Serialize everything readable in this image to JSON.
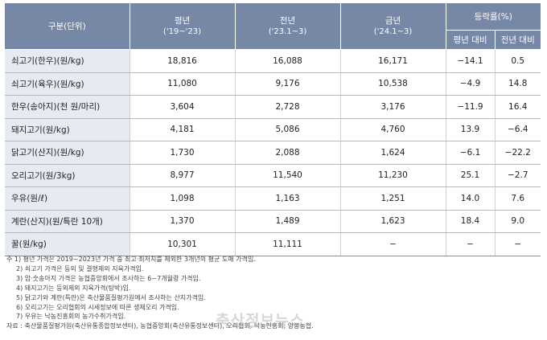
{
  "header": {
    "category": "구분(단위)",
    "avg": "평년",
    "avg_sub": "('19~'23)",
    "prev": "전년",
    "prev_sub": "('23.1~3)",
    "cur": "금년",
    "cur_sub": "('24.1~3)",
    "change": "등락률(%)",
    "vs_avg": "평년 대비",
    "vs_prev": "전년 대비"
  },
  "rows": [
    {
      "name": "쇠고기(한우)(원/kg)",
      "avg": "18,816",
      "prev": "16,088",
      "cur": "16,171",
      "vs_avg": "−14.1",
      "vs_prev": "0.5"
    },
    {
      "name": "쇠고기(육우)(원/kg)",
      "avg": "11,080",
      "prev": "9,176",
      "cur": "10,538",
      "vs_avg": "−4.9",
      "vs_prev": "14.8"
    },
    {
      "name": "한우(송아지)(천 원/마리)",
      "avg": "3,604",
      "prev": "2,728",
      "cur": "3,176",
      "vs_avg": "−11.9",
      "vs_prev": "16.4"
    },
    {
      "name": "돼지고기(원/kg)",
      "avg": "4,181",
      "prev": "5,086",
      "cur": "4,760",
      "vs_avg": "13.9",
      "vs_prev": "−6.4"
    },
    {
      "name": "닭고기(산지)(원/kg)",
      "avg": "1,730",
      "prev": "2,088",
      "cur": "1,624",
      "vs_avg": "−6.1",
      "vs_prev": "−22.2"
    },
    {
      "name": "오리고기(원/3kg)",
      "avg": "8,977",
      "prev": "11,540",
      "cur": "11,230",
      "vs_avg": "25.1",
      "vs_prev": "−2.7"
    },
    {
      "name": "우유(원/ℓ)",
      "avg": "1,098",
      "prev": "1,163",
      "cur": "1,251",
      "vs_avg": "14.0",
      "vs_prev": "7.6"
    },
    {
      "name": "계란(산지)(원/특란 10개)",
      "avg": "1,370",
      "prev": "1,489",
      "cur": "1,623",
      "vs_avg": "18.4",
      "vs_prev": "9.0"
    },
    {
      "name": "꿀(원/kg)",
      "avg": "10,301",
      "prev": "11,111",
      "cur": "−",
      "vs_avg": "−",
      "vs_prev": "−"
    }
  ],
  "notes": [
    "주 1) 평년 가격은 2019~2023년 가격 중 최고·최저치를 제외한 3개년의 평균 도매 가격임.",
    "2) 쇠고기 가격은 등외 및 결형제외 지육가격임.",
    "3) 암·숫송아지 가격은 농협중앙회에서 조사하는 6~7개월령 가격임.",
    "4) 돼지고기는 등외제외 지육가격(탕박)임.",
    "5) 닭고기와 계란(특란)은 축산물품질평가원에서 조사하는 산지가격임.",
    "6) 오리고기는 오리협회의 시세정보에 따른 생체오리 가격임.",
    "7) 우유는 낙농진흥회의 농가수취가격임.",
    "자료 : 축산물품질평가원(축산유통종합정보센터), 농협중앙회(축산유통정보센터), 오리협회, 낙농진흥회, 양봉농협."
  ],
  "watermark": "축산정보뉴스"
}
